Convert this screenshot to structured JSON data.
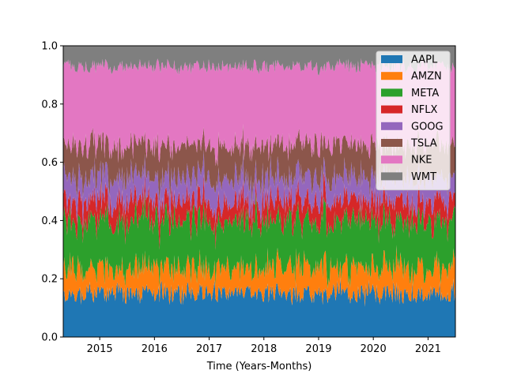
{
  "chart_data": {
    "type": "area",
    "stacked": true,
    "normalized": true,
    "xlabel": "Time (Years-Months)",
    "ylabel": "",
    "title": "",
    "xlim": [
      "2014-05",
      "2021-07"
    ],
    "ylim": [
      0,
      1
    ],
    "x_ticks": [
      "2015",
      "2016",
      "2017",
      "2018",
      "2019",
      "2020",
      "2021"
    ],
    "y_ticks": [
      "0.0",
      "0.2",
      "0.4",
      "0.6",
      "0.8",
      "1.0"
    ],
    "grid": false,
    "legend_position": "top-right",
    "x_start": "2014-05",
    "x_end": "2021-07",
    "series": [
      {
        "name": "AAPL",
        "color": "#1f77b4",
        "mean_share": 0.15,
        "noise": 0.025
      },
      {
        "name": "AMZN",
        "color": "#ff7f0e",
        "mean_share": 0.09,
        "noise": 0.03
      },
      {
        "name": "META",
        "color": "#2ca02c",
        "mean_share": 0.16,
        "noise": 0.03
      },
      {
        "name": "NFLX",
        "color": "#d62728",
        "mean_share": 0.07,
        "noise": 0.02
      },
      {
        "name": "GOOG",
        "color": "#9467bd",
        "mean_share": 0.08,
        "noise": 0.02
      },
      {
        "name": "TSLA",
        "color": "#8c564b",
        "mean_share": 0.11,
        "noise": 0.025
      },
      {
        "name": "NKE",
        "color": "#e377c2",
        "mean_share": 0.27,
        "noise": 0.03
      },
      {
        "name": "WMT",
        "color": "#7f7f7f",
        "mean_share": 0.07,
        "noise": 0.015
      }
    ]
  }
}
